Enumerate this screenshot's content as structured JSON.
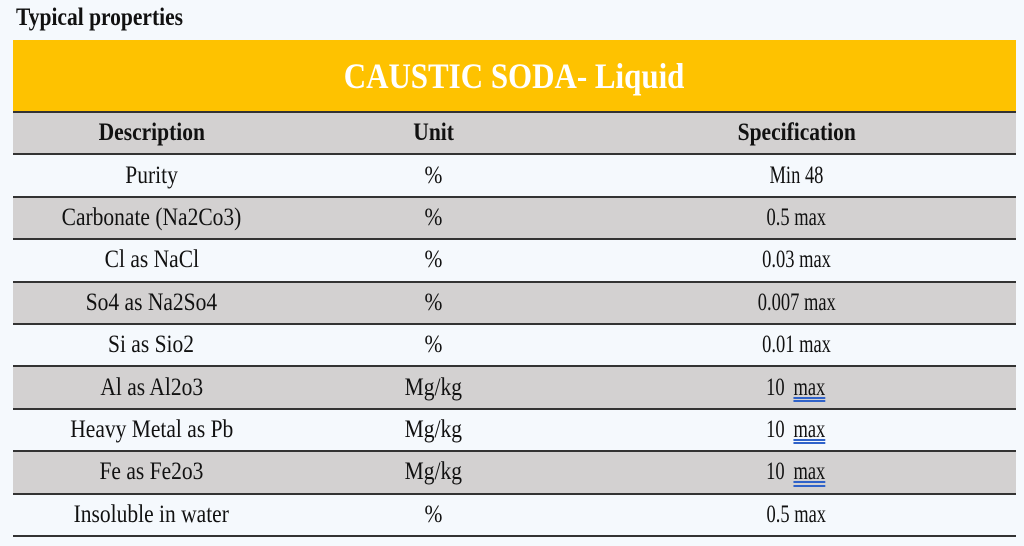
{
  "title": "Typical properties",
  "banner": "CAUSTIC SODA- Liquid",
  "colors": {
    "banner": "#fec200",
    "shaded_row": "#d3d1d1",
    "underline": "#2f62c9"
  },
  "headers": [
    "Description",
    "Unit",
    "Specification"
  ],
  "rows": [
    {
      "description": "Purity",
      "unit": "%",
      "spec_value": "Min 48",
      "spec_suffix": ""
    },
    {
      "description": "Carbonate (Na2Co3)",
      "unit": "%",
      "spec_value": "0.5 max",
      "spec_suffix": ""
    },
    {
      "description": "Cl as NaCl",
      "unit": "%",
      "spec_value": "0.03 max",
      "spec_suffix": ""
    },
    {
      "description": "So4 as Na2So4",
      "unit": "%",
      "spec_value": "0.007 max",
      "spec_suffix": ""
    },
    {
      "description": "Si as Sio2",
      "unit": "%",
      "spec_value": "0.01 max",
      "spec_suffix": ""
    },
    {
      "description": "Al as Al2o3",
      "unit": "Mg/kg",
      "spec_value": "10 ",
      "spec_suffix": "max"
    },
    {
      "description": "Heavy Metal as Pb",
      "unit": "Mg/kg",
      "spec_value": "10 ",
      "spec_suffix": "max"
    },
    {
      "description": "Fe as Fe2o3",
      "unit": "Mg/kg",
      "spec_value": "10 ",
      "spec_suffix": "max"
    },
    {
      "description": "Insoluble in water",
      "unit": "%",
      "spec_value": "0.5 max",
      "spec_suffix": ""
    }
  ]
}
